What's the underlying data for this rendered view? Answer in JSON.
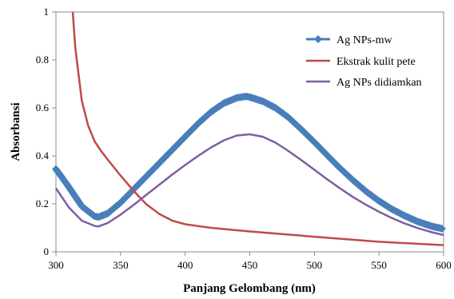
{
  "chart_data": {
    "type": "line",
    "title": "",
    "xlabel": "Panjang Gelombang (nm)",
    "ylabel": "Absorbansi",
    "xlim": [
      300,
      600
    ],
    "ylim": [
      0,
      1
    ],
    "x_ticks": [
      "300",
      "350",
      "400",
      "450",
      "500",
      "550",
      "600"
    ],
    "y_ticks": [
      "0",
      "0.2",
      "0.4",
      "0.6",
      "0.8",
      "1"
    ],
    "grid": false,
    "legend_position": "top-right",
    "series": [
      {
        "name": "Ag NPs-mw",
        "color": "#4a7ebb",
        "marker": "diamond",
        "x": [
          300,
          310,
          320,
          330,
          333,
          340,
          350,
          360,
          370,
          380,
          390,
          400,
          410,
          420,
          430,
          440,
          447,
          450,
          460,
          470,
          480,
          490,
          500,
          510,
          520,
          530,
          540,
          550,
          560,
          570,
          580,
          590,
          600
        ],
        "y": [
          0.345,
          0.27,
          0.19,
          0.148,
          0.145,
          0.16,
          0.205,
          0.26,
          0.315,
          0.37,
          0.425,
          0.48,
          0.535,
          0.583,
          0.62,
          0.642,
          0.648,
          0.645,
          0.628,
          0.6,
          0.56,
          0.51,
          0.457,
          0.402,
          0.348,
          0.298,
          0.252,
          0.212,
          0.178,
          0.15,
          0.126,
          0.108,
          0.095
        ]
      },
      {
        "name": "Ekstrak kulit pete",
        "color": "#be4b48",
        "marker": "none",
        "x": [
          313,
          315,
          320,
          325,
          330,
          335,
          340,
          350,
          360,
          370,
          380,
          390,
          400,
          420,
          450,
          500,
          550,
          600
        ],
        "y": [
          1.0,
          0.85,
          0.63,
          0.525,
          0.46,
          0.42,
          0.385,
          0.318,
          0.255,
          0.198,
          0.158,
          0.13,
          0.115,
          0.1,
          0.085,
          0.063,
          0.042,
          0.028
        ]
      },
      {
        "name": "Ag NPs didiamkan",
        "color": "#7d5fa0",
        "marker": "none",
        "x": [
          300,
          310,
          320,
          330,
          333,
          340,
          350,
          360,
          370,
          380,
          390,
          400,
          410,
          420,
          430,
          440,
          450,
          460,
          470,
          480,
          490,
          500,
          510,
          520,
          530,
          540,
          550,
          560,
          570,
          580,
          590,
          600
        ],
        "y": [
          0.265,
          0.185,
          0.13,
          0.108,
          0.106,
          0.12,
          0.155,
          0.195,
          0.238,
          0.28,
          0.322,
          0.362,
          0.4,
          0.435,
          0.465,
          0.485,
          0.49,
          0.48,
          0.455,
          0.42,
          0.382,
          0.342,
          0.302,
          0.264,
          0.228,
          0.196,
          0.167,
          0.141,
          0.118,
          0.099,
          0.083,
          0.07
        ]
      }
    ]
  }
}
